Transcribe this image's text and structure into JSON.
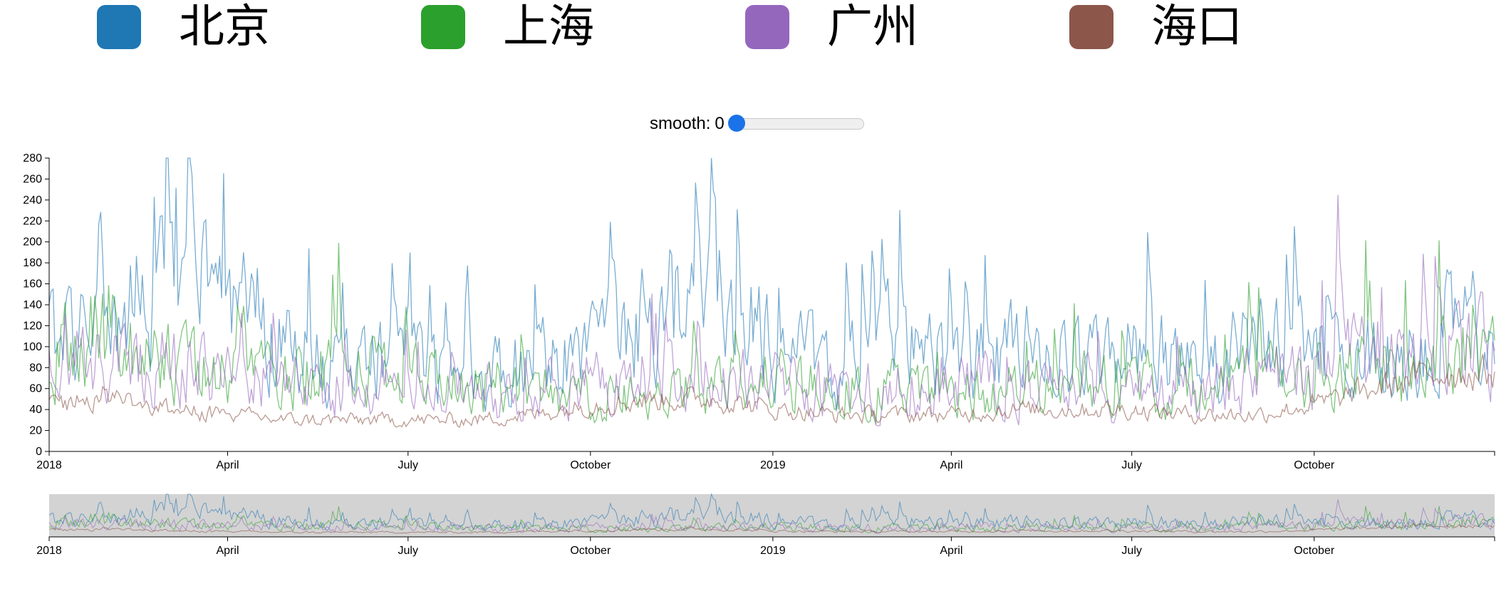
{
  "legend": {
    "items": [
      {
        "label": "北京",
        "color": "#1f77b4"
      },
      {
        "label": "上海",
        "color": "#2ca02c"
      },
      {
        "label": "广州",
        "color": "#9467bd"
      },
      {
        "label": "海口",
        "color": "#8c564b"
      }
    ]
  },
  "controls": {
    "smooth_label": "smooth:",
    "smooth_value": "0"
  },
  "chart_data": {
    "type": "line",
    "title": "",
    "xlabel": "",
    "ylabel": "",
    "x_range": [
      "2018-01-01",
      "2019-12-31"
    ],
    "ylim": [
      0,
      280
    ],
    "y_ticks": [
      0,
      20,
      40,
      60,
      80,
      100,
      120,
      140,
      160,
      180,
      200,
      220,
      240,
      260,
      280
    ],
    "x_tick_labels": [
      "2018",
      "April",
      "July",
      "October",
      "2019",
      "April",
      "July",
      "October"
    ],
    "x_tick_dates": [
      "2018-01-01",
      "2018-04-01",
      "2018-07-01",
      "2018-10-01",
      "2019-01-01",
      "2019-04-01",
      "2019-07-01",
      "2019-10-01"
    ],
    "grid": false,
    "legend_position": "top",
    "has_overview_brush": true,
    "series": [
      {
        "name": "北京",
        "color": "#1f77b4",
        "x": [
          "2018-01-01",
          "2018-02-01",
          "2018-03-01",
          "2018-04-01",
          "2018-05-01",
          "2018-06-01",
          "2018-07-01",
          "2018-08-01",
          "2018-09-01",
          "2018-10-01",
          "2018-11-01",
          "2018-12-01",
          "2019-01-01",
          "2019-02-01",
          "2019-03-01",
          "2019-04-01",
          "2019-05-01",
          "2019-06-01",
          "2019-07-01",
          "2019-08-01",
          "2019-09-01",
          "2019-10-01",
          "2019-11-01",
          "2019-12-01"
        ],
        "values": [
          110,
          120,
          160,
          140,
          95,
          80,
          95,
          70,
          85,
          95,
          130,
          150,
          110,
          75,
          105,
          90,
          95,
          90,
          95,
          80,
          100,
          95,
          90,
          115
        ]
      },
      {
        "name": "上海",
        "color": "#2ca02c",
        "x": [
          "2018-01-01",
          "2018-02-01",
          "2018-03-01",
          "2018-04-01",
          "2018-05-01",
          "2018-06-01",
          "2018-07-01",
          "2018-08-01",
          "2018-09-01",
          "2018-10-01",
          "2018-11-01",
          "2018-12-01",
          "2019-01-01",
          "2019-02-01",
          "2019-03-01",
          "2019-04-01",
          "2019-05-01",
          "2019-06-01",
          "2019-07-01",
          "2019-08-01",
          "2019-09-01",
          "2019-10-01",
          "2019-11-01",
          "2019-12-01"
        ],
        "values": [
          90,
          120,
          85,
          70,
          75,
          80,
          70,
          65,
          60,
          55,
          55,
          60,
          70,
          60,
          55,
          55,
          60,
          65,
          65,
          60,
          70,
          75,
          80,
          90
        ]
      },
      {
        "name": "广州",
        "color": "#9467bd",
        "x": [
          "2018-01-01",
          "2018-02-01",
          "2018-03-01",
          "2018-04-01",
          "2018-05-01",
          "2018-06-01",
          "2018-07-01",
          "2018-08-01",
          "2018-09-01",
          "2018-10-01",
          "2018-11-01",
          "2018-12-01",
          "2019-01-01",
          "2019-02-01",
          "2019-03-01",
          "2019-04-01",
          "2019-05-01",
          "2019-06-01",
          "2019-07-01",
          "2019-08-01",
          "2019-09-01",
          "2019-10-01",
          "2019-11-01",
          "2019-12-01"
        ],
        "values": [
          100,
          80,
          85,
          70,
          65,
          60,
          55,
          55,
          55,
          70,
          75,
          70,
          65,
          60,
          60,
          60,
          65,
          60,
          55,
          60,
          65,
          80,
          90,
          95
        ]
      },
      {
        "name": "海口",
        "color": "#8c564b",
        "x": [
          "2018-01-01",
          "2018-02-01",
          "2018-03-01",
          "2018-04-01",
          "2018-05-01",
          "2018-06-01",
          "2018-07-01",
          "2018-08-01",
          "2018-09-01",
          "2018-10-01",
          "2018-11-01",
          "2018-12-01",
          "2019-01-01",
          "2019-02-01",
          "2019-03-01",
          "2019-04-01",
          "2019-05-01",
          "2019-06-01",
          "2019-07-01",
          "2019-08-01",
          "2019-09-01",
          "2019-10-01",
          "2019-11-01",
          "2019-12-01"
        ],
        "values": [
          45,
          55,
          40,
          35,
          30,
          30,
          30,
          30,
          35,
          45,
          50,
          50,
          40,
          35,
          35,
          35,
          40,
          40,
          40,
          35,
          35,
          45,
          60,
          75
        ]
      }
    ]
  }
}
